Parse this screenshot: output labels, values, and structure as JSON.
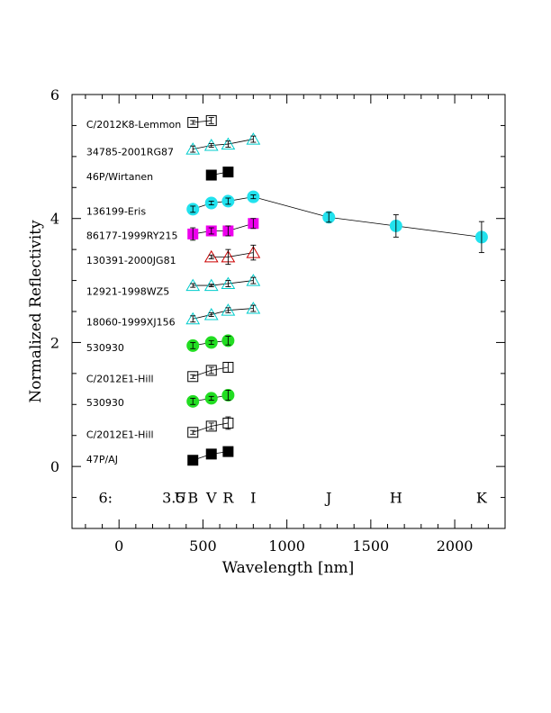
{
  "chart_data": {
    "type": "scatter",
    "xlabel": "Wavelength [nm]",
    "ylabel": "Normalized Reflectivity",
    "xlim": [
      -280,
      2300
    ],
    "ylim": [
      -1,
      6
    ],
    "x_ticks": [
      0,
      500,
      1000,
      1500,
      2000
    ],
    "y_ticks": [
      0,
      2,
      4,
      6
    ],
    "grid": false,
    "panel_label": "6:",
    "band_labels": [
      {
        "text": "3.5",
        "x": 325
      },
      {
        "text": "U",
        "x": 365
      },
      {
        "text": "B",
        "x": 440
      },
      {
        "text": "V",
        "x": 550
      },
      {
        "text": "R",
        "x": 650
      },
      {
        "text": "I",
        "x": 800
      },
      {
        "text": "J",
        "x": 1250
      },
      {
        "text": "H",
        "x": 1650
      },
      {
        "text": "K",
        "x": 2160
      }
    ],
    "label_x": -195,
    "series": [
      {
        "name": "47P/AJ",
        "label_y": 0.12,
        "marker": "square",
        "fill": "#000000",
        "stroke": "#000000",
        "x": [
          440,
          550,
          650
        ],
        "y": [
          0.1,
          0.2,
          0.24
        ],
        "err": [
          0.0,
          0.02,
          0.02
        ]
      },
      {
        "name": "C/2012E1-Hill",
        "label_y": 0.52,
        "marker": "square",
        "fill": "none",
        "stroke": "#000000",
        "x": [
          440,
          550,
          650
        ],
        "y": [
          0.55,
          0.65,
          0.7
        ],
        "err": [
          0.03,
          0.05,
          0.1
        ]
      },
      {
        "name": "530930",
        "label_y": 1.03,
        "marker": "circle",
        "fill": "#22dd22",
        "stroke": "#22dd22",
        "x": [
          440,
          550,
          650
        ],
        "y": [
          1.05,
          1.1,
          1.15
        ],
        "err": [
          0.05,
          0.03,
          0.08
        ]
      },
      {
        "name": "C/2012E1-Hill",
        "label_y": 1.42,
        "marker": "square",
        "fill": "none",
        "stroke": "#000000",
        "x": [
          440,
          550,
          650
        ],
        "y": [
          1.45,
          1.55,
          1.6
        ],
        "err": [
          0.03,
          0.05,
          0.08
        ]
      },
      {
        "name": "530930",
        "label_y": 1.92,
        "marker": "circle",
        "fill": "#22dd22",
        "stroke": "#22dd22",
        "x": [
          440,
          550,
          650
        ],
        "y": [
          1.95,
          2.0,
          2.03
        ],
        "err": [
          0.05,
          0.03,
          0.07
        ]
      },
      {
        "name": "18060-1999XJ156",
        "label_y": 2.33,
        "marker": "triangle",
        "fill": "none",
        "stroke": "#00cccc",
        "x": [
          440,
          550,
          650,
          800
        ],
        "y": [
          2.38,
          2.45,
          2.52,
          2.55
        ],
        "err": [
          0.05,
          0.03,
          0.04,
          0.05
        ]
      },
      {
        "name": "12921-1998WZ5",
        "label_y": 2.83,
        "marker": "triangle",
        "fill": "none",
        "stroke": "#00cccc",
        "x": [
          440,
          550,
          650,
          800
        ],
        "y": [
          2.92,
          2.92,
          2.95,
          3.0
        ],
        "err": [
          0.03,
          0.02,
          0.05,
          0.05
        ]
      },
      {
        "name": "130391-2000JG81",
        "label_y": 3.33,
        "marker": "triangle",
        "fill": "none",
        "stroke": "#cc0000",
        "x": [
          550,
          650,
          800
        ],
        "y": [
          3.38,
          3.38,
          3.45
        ],
        "err": [
          0.03,
          0.12,
          0.12
        ]
      },
      {
        "name": "86177-1999RY215",
        "label_y": 3.73,
        "marker": "square",
        "fill": "#ee00ee",
        "stroke": "#ee00ee",
        "x": [
          440,
          550,
          650,
          800
        ],
        "y": [
          3.75,
          3.8,
          3.8,
          3.92
        ],
        "err": [
          0.1,
          0.05,
          0.08,
          0.08
        ]
      },
      {
        "name": "136199-Eris",
        "label_y": 4.12,
        "marker": "circle",
        "fill": "#22e2ee",
        "stroke": "#22e2ee",
        "x": [
          440,
          550,
          650,
          800,
          1250,
          1650,
          2160
        ],
        "y": [
          4.15,
          4.25,
          4.28,
          4.35,
          4.02,
          3.88,
          3.7
        ],
        "err": [
          0.05,
          0.03,
          0.05,
          0.03,
          0.08,
          0.18,
          0.25
        ]
      },
      {
        "name": "46P/Wirtanen",
        "label_y": 4.68,
        "marker": "square",
        "fill": "#000000",
        "stroke": "#000000",
        "x": [
          550,
          650
        ],
        "y": [
          4.7,
          4.75
        ],
        "err": [
          0.0,
          0.02
        ]
      },
      {
        "name": "34785-2001RG87",
        "label_y": 5.08,
        "marker": "triangle",
        "fill": "none",
        "stroke": "#00cccc",
        "x": [
          440,
          550,
          650,
          800
        ],
        "y": [
          5.12,
          5.18,
          5.2,
          5.28
        ],
        "err": [
          0.05,
          0.03,
          0.05,
          0.05
        ]
      },
      {
        "name": "C/2012K8-Lemmon",
        "label_y": 5.52,
        "marker": "square",
        "fill": "none",
        "stroke": "#000000",
        "x": [
          440,
          550
        ],
        "y": [
          5.55,
          5.58
        ],
        "err": [
          0.03,
          0.05
        ]
      }
    ]
  }
}
